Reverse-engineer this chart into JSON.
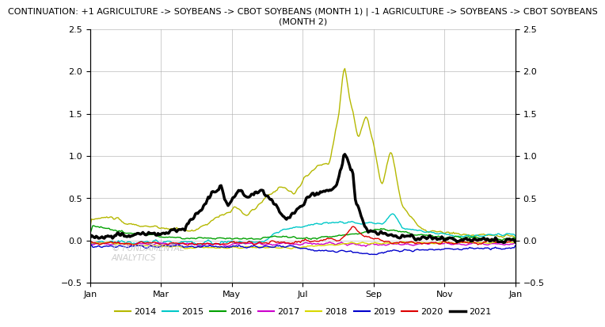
{
  "title": "CONTINUATION: +1 AGRICULTURE -> SOYBEANS -> CBOT SOYBEANS (MONTH 1) | -1 AGRICULTURE -> SOYBEANS -> CBOT SOYBEANS\n(MONTH 2)",
  "ylim": [
    -0.5,
    2.5
  ],
  "yticks": [
    -0.5,
    0.0,
    0.5,
    1.0,
    1.5,
    2.0,
    2.5
  ],
  "legend_labels": [
    "2014",
    "2015",
    "2016",
    "2017",
    "2018",
    "2019",
    "2020",
    "2021"
  ],
  "legend_colors": [
    "#b5b800",
    "#00c8c8",
    "#00a000",
    "#cc00cc",
    "#d8d800",
    "#0000cc",
    "#dd0000",
    "#000000"
  ],
  "line_widths": [
    1.0,
    1.0,
    1.0,
    1.0,
    1.0,
    1.0,
    1.0,
    2.5
  ],
  "watermark": "© FUNDAMENTAL\nANALYTICS",
  "bg_color": "#ffffff",
  "grid_color": "#aaaaaa",
  "title_fontsize": 8.0,
  "label_fontsize": 8,
  "watermark_color": "#cccccc"
}
